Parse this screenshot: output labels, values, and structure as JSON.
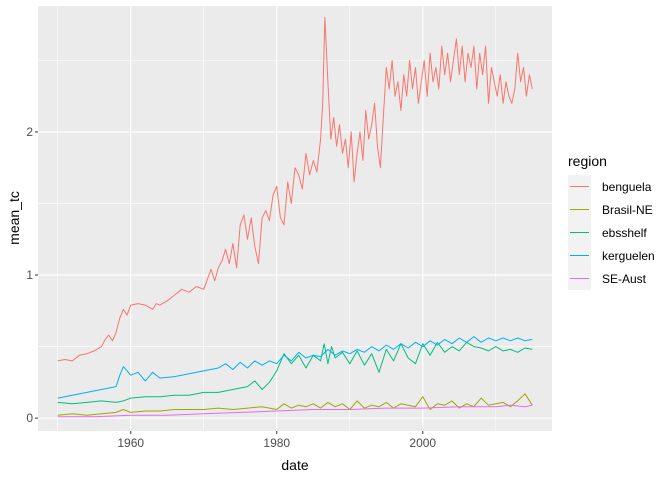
{
  "chart_data": {
    "type": "line",
    "title": "",
    "xlabel": "date",
    "ylabel": "mean_tc",
    "xlim": [
      1947.3,
      2017.7
    ],
    "ylim": [
      -0.09,
      2.88
    ],
    "x_ticks": [
      1960,
      1980,
      2000
    ],
    "y_ticks": [
      0,
      1,
      2
    ],
    "x_tick_labels": [
      "1960",
      "1980",
      "2000"
    ],
    "y_tick_labels": [
      "0",
      "1",
      "2"
    ],
    "grid": true,
    "legend": {
      "title": "region",
      "position": "right"
    },
    "series": [
      {
        "name": "benguela",
        "color": "#F8766D",
        "x": [
          1950,
          1951,
          1952,
          1953,
          1954,
          1955,
          1956,
          1956.5,
          1957,
          1957.5,
          1958,
          1958.5,
          1959,
          1959.5,
          1960,
          1961,
          1962,
          1963,
          1963.5,
          1964,
          1965,
          1966,
          1967,
          1968,
          1969,
          1970,
          1970.5,
          1971,
          1971.5,
          1972,
          1972.5,
          1973,
          1973.5,
          1974,
          1974.5,
          1975,
          1975.5,
          1976,
          1976.5,
          1977,
          1977.5,
          1978,
          1978.5,
          1979,
          1979.5,
          1980,
          1980.5,
          1981,
          1981.5,
          1982,
          1982.5,
          1983,
          1983.5,
          1984,
          1984.5,
          1985,
          1985.5,
          1986,
          1986.3,
          1986.6,
          1987,
          1987.4,
          1987.8,
          1988.2,
          1988.6,
          1989,
          1989.4,
          1989.8,
          1990.2,
          1990.6,
          1991,
          1991.4,
          1991.8,
          1992.2,
          1992.6,
          1993,
          1993.4,
          1993.8,
          1994.2,
          1994.6,
          1995,
          1995.4,
          1995.8,
          1996.2,
          1996.6,
          1997,
          1997.4,
          1997.8,
          1998.2,
          1998.6,
          1999,
          1999.4,
          1999.8,
          2000.2,
          2000.6,
          2001,
          2001.4,
          2001.8,
          2002.2,
          2002.6,
          2003,
          2003.4,
          2003.8,
          2004.2,
          2004.6,
          2005,
          2005.4,
          2005.8,
          2006.2,
          2006.6,
          2007,
          2007.4,
          2007.8,
          2008.2,
          2008.6,
          2009,
          2009.4,
          2009.8,
          2010.2,
          2010.6,
          2011,
          2011.4,
          2011.8,
          2012.2,
          2012.6,
          2013,
          2013.4,
          2013.8,
          2014.2,
          2014.6,
          2015
        ],
        "y": [
          0.4,
          0.41,
          0.4,
          0.44,
          0.45,
          0.47,
          0.5,
          0.55,
          0.58,
          0.54,
          0.6,
          0.7,
          0.76,
          0.72,
          0.79,
          0.8,
          0.79,
          0.76,
          0.8,
          0.79,
          0.82,
          0.86,
          0.9,
          0.88,
          0.92,
          0.9,
          0.97,
          1.04,
          0.96,
          1.05,
          1.1,
          1.18,
          1.08,
          1.22,
          1.05,
          1.35,
          1.42,
          1.25,
          1.4,
          1.2,
          1.08,
          1.4,
          1.45,
          1.38,
          1.56,
          1.62,
          1.4,
          1.35,
          1.65,
          1.5,
          1.75,
          1.7,
          1.6,
          1.85,
          1.7,
          1.8,
          1.72,
          1.95,
          2.2,
          2.8,
          2.35,
          1.95,
          2.1,
          1.9,
          2.05,
          1.85,
          1.95,
          1.75,
          2.0,
          1.65,
          1.85,
          2.0,
          1.8,
          2.15,
          1.95,
          2.05,
          2.2,
          1.9,
          1.75,
          2.1,
          2.45,
          2.3,
          2.5,
          2.25,
          2.35,
          2.15,
          2.4,
          2.25,
          2.5,
          2.3,
          2.45,
          2.2,
          2.35,
          2.5,
          2.25,
          2.55,
          2.35,
          2.45,
          2.3,
          2.6,
          2.4,
          2.55,
          2.35,
          2.5,
          2.65,
          2.4,
          2.6,
          2.35,
          2.55,
          2.45,
          2.6,
          2.3,
          2.55,
          2.4,
          2.6,
          2.2,
          2.45,
          2.35,
          2.25,
          2.4,
          2.2,
          2.35,
          2.25,
          2.2,
          2.3,
          2.55,
          2.35,
          2.45,
          2.25,
          2.4,
          2.3
        ]
      },
      {
        "name": "Brasil-NE",
        "color": "#A3A500",
        "x": [
          1950,
          1952,
          1954,
          1956,
          1958,
          1959,
          1960,
          1962,
          1964,
          1966,
          1968,
          1970,
          1972,
          1974,
          1976,
          1978,
          1980,
          1981,
          1982,
          1983,
          1984,
          1985,
          1986,
          1987,
          1988,
          1989,
          1990,
          1991,
          1992,
          1993,
          1994,
          1995,
          1996,
          1997,
          1998,
          1999,
          2000,
          2001,
          2002,
          2003,
          2004,
          2005,
          2006,
          2007,
          2008,
          2009,
          2010,
          2011,
          2012,
          2013,
          2014,
          2015
        ],
        "y": [
          0.02,
          0.03,
          0.02,
          0.03,
          0.04,
          0.06,
          0.04,
          0.05,
          0.05,
          0.06,
          0.06,
          0.06,
          0.07,
          0.06,
          0.07,
          0.08,
          0.06,
          0.1,
          0.07,
          0.09,
          0.08,
          0.1,
          0.07,
          0.11,
          0.08,
          0.1,
          0.06,
          0.12,
          0.07,
          0.09,
          0.08,
          0.11,
          0.07,
          0.1,
          0.09,
          0.08,
          0.15,
          0.06,
          0.1,
          0.09,
          0.12,
          0.07,
          0.1,
          0.08,
          0.14,
          0.09,
          0.1,
          0.11,
          0.08,
          0.12,
          0.17,
          0.09
        ]
      },
      {
        "name": "ebsshelf",
        "color": "#00BF7D",
        "x": [
          1950,
          1952,
          1954,
          1956,
          1958,
          1959,
          1960,
          1962,
          1964,
          1966,
          1968,
          1970,
          1972,
          1974,
          1976,
          1977,
          1978,
          1979,
          1980,
          1981,
          1982,
          1983,
          1984,
          1985,
          1986,
          1986.5,
          1987,
          1987.5,
          1988,
          1989,
          1990,
          1991,
          1992,
          1993,
          1994,
          1995,
          1996,
          1997,
          1998,
          1999,
          2000,
          2001,
          2002,
          2003,
          2004,
          2005,
          2006,
          2007,
          2008,
          2009,
          2010,
          2011,
          2012,
          2013,
          2014,
          2015
        ],
        "y": [
          0.11,
          0.1,
          0.11,
          0.12,
          0.11,
          0.12,
          0.14,
          0.15,
          0.15,
          0.16,
          0.16,
          0.18,
          0.18,
          0.2,
          0.22,
          0.26,
          0.2,
          0.25,
          0.33,
          0.45,
          0.38,
          0.44,
          0.35,
          0.44,
          0.4,
          0.52,
          0.38,
          0.5,
          0.42,
          0.46,
          0.38,
          0.47,
          0.37,
          0.45,
          0.32,
          0.48,
          0.4,
          0.52,
          0.42,
          0.38,
          0.52,
          0.44,
          0.53,
          0.46,
          0.5,
          0.47,
          0.53,
          0.5,
          0.49,
          0.47,
          0.5,
          0.47,
          0.48,
          0.46,
          0.49,
          0.48
        ]
      },
      {
        "name": "kerguelen",
        "color": "#00B0F6",
        "x": [
          1950,
          1952,
          1954,
          1956,
          1958,
          1958.5,
          1959,
          1960,
          1961,
          1962,
          1963,
          1964,
          1966,
          1968,
          1970,
          1972,
          1973,
          1974,
          1975,
          1976,
          1977,
          1978,
          1979,
          1980,
          1981,
          1982,
          1983,
          1984,
          1985,
          1986,
          1987,
          1988,
          1989,
          1990,
          1991,
          1992,
          1993,
          1994,
          1995,
          1996,
          1997,
          1998,
          1999,
          2000,
          2001,
          2002,
          2003,
          2004,
          2005,
          2006,
          2007,
          2008,
          2009,
          2010,
          2011,
          2012,
          2013,
          2014,
          2015
        ],
        "y": [
          0.14,
          0.16,
          0.18,
          0.2,
          0.22,
          0.3,
          0.36,
          0.3,
          0.32,
          0.26,
          0.32,
          0.28,
          0.29,
          0.31,
          0.33,
          0.35,
          0.38,
          0.34,
          0.39,
          0.35,
          0.4,
          0.37,
          0.4,
          0.38,
          0.44,
          0.4,
          0.46,
          0.42,
          0.44,
          0.43,
          0.48,
          0.44,
          0.47,
          0.45,
          0.48,
          0.46,
          0.5,
          0.47,
          0.51,
          0.48,
          0.52,
          0.49,
          0.53,
          0.5,
          0.54,
          0.51,
          0.55,
          0.52,
          0.56,
          0.53,
          0.57,
          0.53,
          0.56,
          0.54,
          0.56,
          0.54,
          0.56,
          0.54,
          0.55
        ]
      },
      {
        "name": "SE-Aust",
        "color": "#E76BF3",
        "x": [
          1950,
          1955,
          1960,
          1965,
          1970,
          1975,
          1980,
          1985,
          1990,
          1995,
          2000,
          2005,
          2010,
          2012,
          2014,
          2015
        ],
        "y": [
          0.01,
          0.01,
          0.02,
          0.02,
          0.03,
          0.04,
          0.05,
          0.06,
          0.06,
          0.07,
          0.07,
          0.08,
          0.08,
          0.09,
          0.08,
          0.09
        ]
      }
    ]
  }
}
